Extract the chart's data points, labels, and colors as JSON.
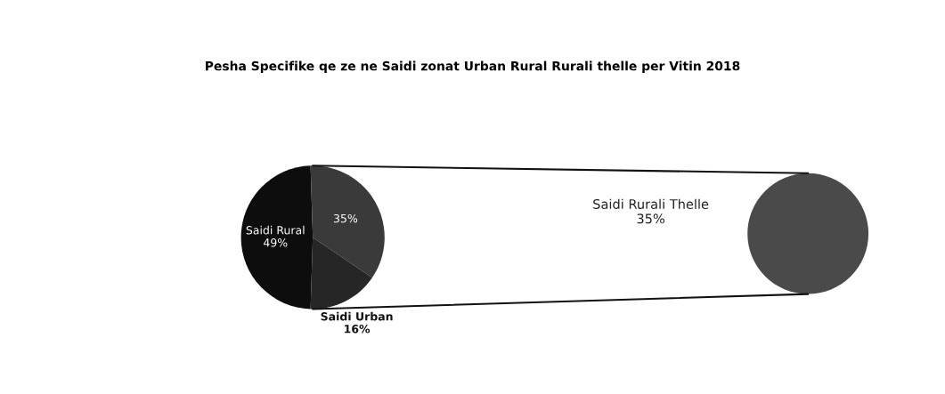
{
  "chart_data": [
    {
      "type": "pie",
      "title": "Pesha Specifike qe ze ne Saidi zonat Urban Rural Rurali thelle per Vitin 2018",
      "categories": [
        "Saidi Rural",
        null,
        "Saidi Urban"
      ],
      "values": [
        49,
        35,
        16
      ],
      "colors": [
        "#0d0d0d",
        "#3a3a3a",
        "#262626"
      ],
      "value_labels": [
        "49%",
        "35%",
        "16%"
      ]
    },
    {
      "type": "pie",
      "categories": [
        "Saidi Rurali Thelle"
      ],
      "values": [
        35
      ],
      "colors": [
        "#4a4a4a"
      ],
      "value_labels": [
        "35%"
      ]
    }
  ]
}
